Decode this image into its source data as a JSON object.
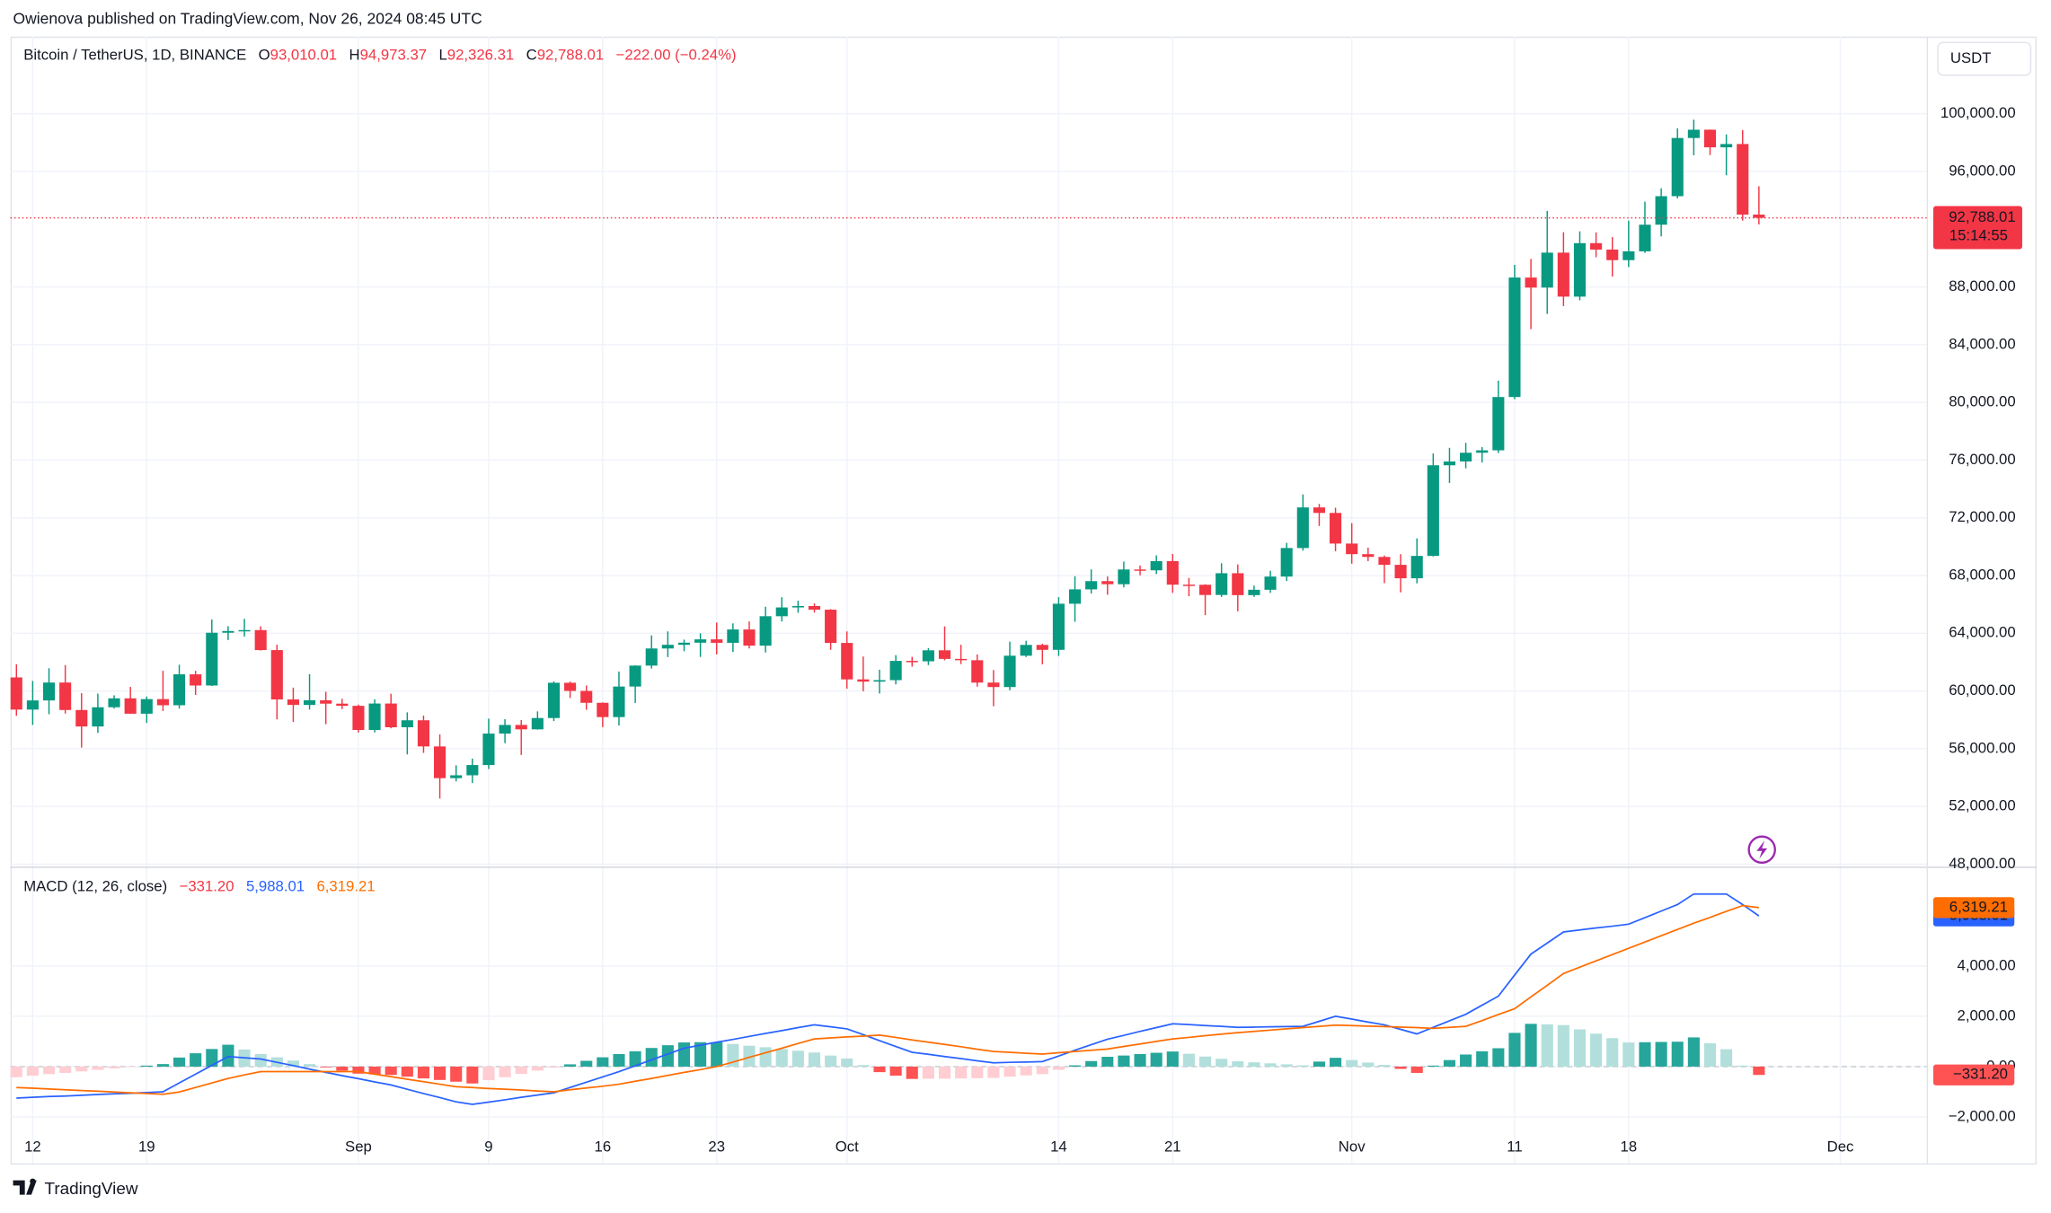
{
  "header": {
    "publisher": "Owienova published on TradingView.com, Nov 26, 2024 08:45 UTC",
    "currency_button": "USDT",
    "brand": "TradingView"
  },
  "chart_data": [
    {
      "type": "candlestick",
      "symbol": "Bitcoin / TetherUS, 1D, BINANCE",
      "legend": {
        "o_label": "O",
        "open": "93,010.01",
        "h_label": "H",
        "high": "94,973.37",
        "l_label": "L",
        "low": "92,326.31",
        "c_label": "C",
        "close": "92,788.01",
        "change": "−222.00 (−0.24%)"
      },
      "x": [
        "Aug 11",
        "Aug 12",
        "Aug 13",
        "Aug 14",
        "Aug 15",
        "Aug 16",
        "Aug 17",
        "Aug 18",
        "Aug 19",
        "Aug 20",
        "Aug 21",
        "Aug 22",
        "Aug 23",
        "Aug 24",
        "Aug 25",
        "Aug 26",
        "Aug 27",
        "Aug 28",
        "Aug 29",
        "Aug 30",
        "Aug 31",
        "Sep 1",
        "Sep 2",
        "Sep 3",
        "Sep 4",
        "Sep 5",
        "Sep 6",
        "Sep 7",
        "Sep 8",
        "Sep 9",
        "Sep 10",
        "Sep 11",
        "Sep 12",
        "Sep 13",
        "Sep 14",
        "Sep 15",
        "Sep 16",
        "Sep 17",
        "Sep 18",
        "Sep 19",
        "Sep 20",
        "Sep 21",
        "Sep 22",
        "Sep 23",
        "Sep 24",
        "Sep 25",
        "Sep 26",
        "Sep 27",
        "Sep 28",
        "Sep 29",
        "Sep 30",
        "Oct 1",
        "Oct 2",
        "Oct 3",
        "Oct 4",
        "Oct 5",
        "Oct 6",
        "Oct 7",
        "Oct 8",
        "Oct 9",
        "Oct 10",
        "Oct 11",
        "Oct 12",
        "Oct 13",
        "Oct 14",
        "Oct 15",
        "Oct 16",
        "Oct 17",
        "Oct 18",
        "Oct 19",
        "Oct 20",
        "Oct 21",
        "Oct 22",
        "Oct 23",
        "Oct 24",
        "Oct 25",
        "Oct 26",
        "Oct 27",
        "Oct 28",
        "Oct 29",
        "Oct 30",
        "Oct 31",
        "Nov 1",
        "Nov 2",
        "Nov 3",
        "Nov 4",
        "Nov 5",
        "Nov 6",
        "Nov 7",
        "Nov 8",
        "Nov 9",
        "Nov 10",
        "Nov 11",
        "Nov 12",
        "Nov 13",
        "Nov 14",
        "Nov 15",
        "Nov 16",
        "Nov 17",
        "Nov 18",
        "Nov 19",
        "Nov 20",
        "Nov 21",
        "Nov 22",
        "Nov 23",
        "Nov 24",
        "Nov 25",
        "Nov 26"
      ],
      "open": [
        60940,
        58712,
        59346,
        60587,
        58683,
        57541,
        58874,
        59491,
        58427,
        59438,
        59013,
        61156,
        60381,
        64037,
        64157,
        64220,
        62834,
        59415,
        59034,
        59359,
        59123,
        58973,
        57301,
        59132,
        57487,
        57971,
        56160,
        53962,
        54160,
        54869,
        57050,
        57648,
        57343,
        58127,
        60571,
        60005,
        59182,
        58192,
        60309,
        61760,
        62947,
        63201,
        63348,
        63578,
        63339,
        64262,
        63144,
        65181,
        65790,
        65887,
        65635,
        63329,
        60805,
        60650,
        60752,
        62086,
        62058,
        62819,
        62224,
        62131,
        60583,
        60274,
        62445,
        63193,
        62851,
        66047,
        67042,
        67612,
        67399,
        68419,
        68362,
        69002,
        67367,
        67361,
        66654,
        68161,
        66642,
        67014,
        67929,
        69907,
        72720,
        72339,
        70216,
        69482,
        69289,
        68742,
        67811,
        69360,
        75640,
        75905,
        76509,
        76677,
        80370,
        88648,
        87952,
        90375,
        87326,
        91032,
        90587,
        89855,
        90465,
        92310,
        94286,
        98318,
        98892,
        97672,
        97901,
        93010.01
      ],
      "high": [
        61850,
        60700,
        61578,
        61800,
        59849,
        59817,
        59700,
        60284,
        59617,
        61400,
        61820,
        61400,
        64955,
        64494,
        65000,
        64481,
        63212,
        60234,
        61166,
        59944,
        59462,
        59054,
        59425,
        59809,
        58519,
        58300,
        56995,
        54850,
        55318,
        58088,
        58044,
        57991,
        58588,
        60670,
        60656,
        60381,
        59210,
        61350,
        61786,
        63850,
        64133,
        63559,
        64000,
        64745,
        64688,
        64817,
        65839,
        66498,
        66260,
        66076,
        65669,
        64129,
        62390,
        61477,
        62484,
        62370,
        62975,
        64478,
        63200,
        62532,
        61450,
        63417,
        63481,
        63276,
        66500,
        67950,
        68425,
        67938,
        68969,
        68694,
        69400,
        69500,
        67836,
        67400,
        68850,
        68771,
        67307,
        68332,
        70270,
        73620,
        72961,
        72700,
        71632,
        69934,
        69387,
        69481,
        70577,
        76460,
        76849,
        77199,
        76900,
        81500,
        89530,
        89940,
        93265,
        91790,
        91850,
        91779,
        91449,
        92594,
        93905,
        94831,
        98984,
        99588,
        98908,
        98564,
        98871,
        94973.37
      ],
      "low": [
        58286,
        57650,
        58392,
        58433,
        56078,
        57098,
        58785,
        58408,
        57787,
        58610,
        58783,
        59724,
        60345,
        63531,
        63773,
        62800,
        58034,
        57860,
        58713,
        57701,
        58745,
        57118,
        57128,
        57415,
        55606,
        55712,
        52550,
        53745,
        53629,
        54591,
        56386,
        55567,
        57324,
        57917,
        59517,
        58696,
        57493,
        57610,
        59174,
        61555,
        62350,
        62758,
        62357,
        62538,
        62700,
        62947,
        62670,
        64819,
        65422,
        65432,
        62856,
        60164,
        59984,
        59828,
        60459,
        61689,
        61798,
        62128,
        61860,
        60300,
        58946,
        60050,
        62356,
        61850,
        62425,
        64800,
        66750,
        66666,
        67177,
        68020,
        68100,
        66800,
        66571,
        65260,
        66518,
        65522,
        66518,
        66800,
        67620,
        69730,
        71436,
        69685,
        68820,
        69000,
        67478,
        66835,
        67458,
        69322,
        74416,
        75427,
        75836,
        76492,
        80216,
        85072,
        86127,
        86668,
        87073,
        90056,
        88722,
        89376,
        90357,
        91500,
        94134,
        97122,
        97136,
        95734,
        92600,
        92326.31
      ],
      "close": [
        58712,
        59346,
        60587,
        58683,
        57541,
        58874,
        59491,
        58427,
        59438,
        59013,
        61156,
        60381,
        64037,
        64157,
        64220,
        62834,
        59415,
        59034,
        59359,
        59123,
        58973,
        57301,
        59132,
        57487,
        57971,
        56160,
        53962,
        54160,
        54869,
        57050,
        57648,
        57343,
        58127,
        60571,
        60005,
        59182,
        58192,
        60309,
        61760,
        62947,
        63201,
        63348,
        63578,
        63339,
        64262,
        63144,
        65181,
        65790,
        65887,
        65635,
        63329,
        60805,
        60650,
        60752,
        62086,
        62058,
        62819,
        62224,
        62131,
        60583,
        60274,
        62445,
        63193,
        62851,
        66047,
        67042,
        67612,
        67399,
        68419,
        68362,
        69002,
        67367,
        67361,
        66654,
        68161,
        66642,
        67014,
        67929,
        69907,
        72720,
        72339,
        70216,
        69482,
        69289,
        68742,
        67811,
        69360,
        75640,
        75905,
        76509,
        76677,
        80370,
        88648,
        87952,
        90375,
        87326,
        91032,
        90587,
        89855,
        90465,
        92310,
        94286,
        98318,
        98892,
        97672,
        97901,
        93010,
        92788.01
      ],
      "up_color": "#089981",
      "down_color": "#f23645",
      "last_price_label": "92,788.01",
      "countdown": "15:14:55",
      "ylim": [
        47922,
        105344
      ],
      "yticks": [
        {
          "value": 48000,
          "label": "48,000.00"
        },
        {
          "value": 52000,
          "label": "52,000.00"
        },
        {
          "value": 56000,
          "label": "56,000.00"
        },
        {
          "value": 60000,
          "label": "60,000.00"
        },
        {
          "value": 64000,
          "label": "64,000.00"
        },
        {
          "value": 68000,
          "label": "68,000.00"
        },
        {
          "value": 72000,
          "label": "72,000.00"
        },
        {
          "value": 76000,
          "label": "76,000.00"
        },
        {
          "value": 80000,
          "label": "80,000.00"
        },
        {
          "value": 84000,
          "label": "84,000.00"
        },
        {
          "value": 88000,
          "label": "88,000.00"
        },
        {
          "value": 96000,
          "label": "96,000.00"
        },
        {
          "value": 100000,
          "label": "100,000.00"
        }
      ],
      "xticks": [
        {
          "value": "Aug 12",
          "label": "12"
        },
        {
          "value": "Aug 19",
          "label": "19"
        },
        {
          "value": "Sep 1",
          "label": "Sep"
        },
        {
          "value": "Sep 9",
          "label": "9"
        },
        {
          "value": "Sep 16",
          "label": "16"
        },
        {
          "value": "Sep 23",
          "label": "23"
        },
        {
          "value": "Oct 1",
          "label": "Oct"
        },
        {
          "value": "Oct 14",
          "label": "14"
        },
        {
          "value": "Oct 21",
          "label": "21"
        },
        {
          "value": "Nov 1",
          "label": "Nov"
        },
        {
          "value": "Nov 11",
          "label": "11"
        },
        {
          "value": "Nov 18",
          "label": "18"
        },
        {
          "value": "Dec 1",
          "label": "Dec"
        }
      ],
      "grid": true
    },
    {
      "type": "macd",
      "title": "MACD (12, 26, close)",
      "series": [
        {
          "color": "#2962ff",
          "last_label": "5,988.01",
          "values": [
            -1250,
            -1220,
            -1190,
            -1170,
            -1140,
            -1110,
            -1080,
            -1060,
            -1030,
            -1000,
            -650,
            -300,
            50,
            400,
            350,
            300,
            170,
            40,
            -100,
            -230,
            -360,
            -480,
            -610,
            -730,
            -900,
            -1070,
            -1230,
            -1400,
            -1500,
            -1410,
            -1320,
            -1220,
            -1130,
            -1040,
            -830,
            -620,
            -410,
            -200,
            30,
            270,
            500,
            730,
            850,
            970,
            1080,
            1200,
            1320,
            1430,
            1550,
            1660,
            1580,
            1500,
            1270,
            1030,
            800,
            570,
            490,
            400,
            320,
            230,
            150,
            170,
            180,
            200,
            420,
            650,
            870,
            1090,
            1240,
            1400,
            1550,
            1700,
            1670,
            1630,
            1600,
            1560,
            1570,
            1580,
            1590,
            1600,
            1800,
            2000,
            1890,
            1770,
            1660,
            1480,
            1300,
            1560,
            1820,
            2080,
            2440,
            2800,
            3640,
            4470,
            4910,
            5350,
            5430,
            5510,
            5580,
            5660,
            5920,
            6180,
            6440,
            6860,
            6860,
            6860,
            6440,
            5988.01
          ]
        },
        {
          "color": "#ff6d00",
          "last_label": "6,319.21",
          "values": [
            -830,
            -860,
            -890,
            -920,
            -950,
            -980,
            -1010,
            -1040,
            -1070,
            -1100,
            -1010,
            -830,
            -650,
            -470,
            -330,
            -200,
            -200,
            -200,
            -200,
            -200,
            -200,
            -200,
            -300,
            -400,
            -500,
            -600,
            -700,
            -800,
            -830,
            -870,
            -900,
            -930,
            -970,
            -1000,
            -920,
            -850,
            -780,
            -700,
            -580,
            -470,
            -350,
            -230,
            -120,
            0,
            180,
            370,
            550,
            730,
            920,
            1100,
            1140,
            1180,
            1210,
            1250,
            1160,
            1060,
            970,
            880,
            790,
            690,
            600,
            570,
            530,
            500,
            550,
            600,
            650,
            700,
            800,
            900,
            1000,
            1100,
            1160,
            1230,
            1290,
            1350,
            1400,
            1450,
            1500,
            1550,
            1600,
            1650,
            1630,
            1610,
            1590,
            1570,
            1550,
            1520,
            1560,
            1600,
            1830,
            2070,
            2300,
            2770,
            3230,
            3700,
            3950,
            4200,
            4450,
            4700,
            4950,
            5200,
            5450,
            5700,
            5930,
            6170,
            6400,
            6319.21
          ]
        }
      ],
      "histogram": {
        "last_label": "−331.20",
        "colors": {
          "rising_above": "#26a69a",
          "falling_above": "#b2dfdb",
          "rising_below": "#ffcdd2",
          "falling_below": "#ff5252"
        },
        "values": [
          -420,
          -360,
          -300,
          -250,
          -190,
          -130,
          -70,
          -20,
          40,
          100,
          360,
          530,
          700,
          870,
          680,
          500,
          370,
          240,
          100,
          -30,
          -160,
          -280,
          -310,
          -330,
          -400,
          -470,
          -530,
          -600,
          -670,
          -540,
          -420,
          -290,
          -160,
          -40,
          90,
          230,
          370,
          500,
          610,
          740,
          850,
          960,
          970,
          970,
          900,
          830,
          770,
          700,
          630,
          560,
          440,
          320,
          60,
          -220,
          -360,
          -490,
          -480,
          -480,
          -470,
          -460,
          -450,
          -400,
          -350,
          -300,
          -130,
          50,
          220,
          390,
          440,
          500,
          550,
          600,
          510,
          400,
          310,
          210,
          170,
          130,
          90,
          50,
          200,
          350,
          260,
          160,
          70,
          -90,
          -250,
          40,
          260,
          480,
          610,
          730,
          1340,
          1700,
          1680,
          1650,
          1480,
          1310,
          1130,
          960,
          970,
          980,
          990,
          1160,
          930,
          690,
          40,
          -331.2
        ]
      },
      "ylim": [
        -3844,
        7948
      ],
      "yticks": [
        {
          "value": 4000,
          "label": "4,000.00"
        },
        {
          "value": 2000,
          "label": "2,000.00"
        },
        {
          "value": 0,
          "label": "0.00"
        },
        {
          "value": -2000,
          "label": "−2,000.00"
        }
      ],
      "grid": true
    }
  ]
}
